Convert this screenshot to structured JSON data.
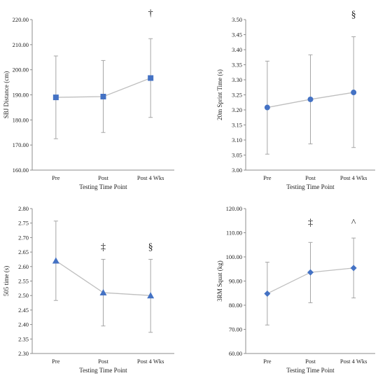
{
  "colors": {
    "marker": "#4472C4",
    "line": "#BFBFBF",
    "errorbar": "#A6A6A6",
    "axis": "#8C8C8C"
  },
  "chart_data": [
    {
      "type": "line",
      "marker": "square",
      "xlabel": "Testing Time Point",
      "ylabel": "SBJ Distance (cm)",
      "categories": [
        "Pre",
        "Post",
        "Post 4 Wks"
      ],
      "series": [
        {
          "values": [
            189.0,
            189.3,
            196.7
          ],
          "error_low": [
            172.5,
            175.0,
            181.0
          ],
          "error_high": [
            205.5,
            203.7,
            212.4
          ]
        }
      ],
      "ylim": [
        160,
        220
      ],
      "ystep": 10,
      "ytick_labels": [
        "160.00",
        "170.00",
        "180.00",
        "190.00",
        "200.00",
        "210.00",
        "220.00"
      ],
      "annotations": [
        {
          "category": 2,
          "text": "†"
        }
      ]
    },
    {
      "type": "line",
      "marker": "circle",
      "xlabel": "Testing Time Point",
      "ylabel": "20m Sprint Time (s)",
      "categories": [
        "Pre",
        "Post",
        "Post 4 Wks"
      ],
      "series": [
        {
          "values": [
            3.208,
            3.235,
            3.258
          ],
          "error_low": [
            3.053,
            3.087,
            3.075
          ],
          "error_high": [
            3.362,
            3.383,
            3.443
          ]
        }
      ],
      "ylim": [
        3.0,
        3.5
      ],
      "ystep": 0.05,
      "ytick_labels": [
        "3.00",
        "3.05",
        "3.10",
        "3.15",
        "3.20",
        "3.25",
        "3.30",
        "3.35",
        "3.40",
        "3.45",
        "3.50"
      ],
      "annotations": [
        {
          "category": 2,
          "text": "§"
        }
      ]
    },
    {
      "type": "line",
      "marker": "triangle",
      "xlabel": "Testing Time Point",
      "ylabel": "505 time (s)",
      "categories": [
        "Pre",
        "Post",
        "Post 4 Wks"
      ],
      "series": [
        {
          "values": [
            2.62,
            2.51,
            2.5
          ],
          "error_low": [
            2.483,
            2.395,
            2.373
          ],
          "error_high": [
            2.757,
            2.625,
            2.625
          ]
        }
      ],
      "ylim": [
        2.3,
        2.8
      ],
      "ystep": 0.05,
      "ytick_labels": [
        "2.30",
        "2.35",
        "2.40",
        "2.45",
        "2.50",
        "2.55",
        "2.60",
        "2.65",
        "2.70",
        "2.75",
        "2.80"
      ],
      "annotations": [
        {
          "category": 1,
          "text": "‡"
        },
        {
          "category": 2,
          "text": "§"
        }
      ]
    },
    {
      "type": "line",
      "marker": "diamond",
      "xlabel": "Testing Time Point",
      "ylabel": "3RM Squat (kg)",
      "categories": [
        "Pre",
        "Post",
        "Post 4 Wks"
      ],
      "series": [
        {
          "values": [
            84.8,
            93.6,
            95.4
          ],
          "error_low": [
            71.8,
            81.0,
            83.0
          ],
          "error_high": [
            97.8,
            106.0,
            107.8
          ]
        }
      ],
      "ylim": [
        60,
        120
      ],
      "ystep": 10,
      "ytick_labels": [
        "60.00",
        "70.00",
        "80.00",
        "90.00",
        "100.00",
        "110.00",
        "120.00"
      ],
      "annotations": [
        {
          "category": 1,
          "text": "‡"
        },
        {
          "category": 2,
          "text": "^"
        }
      ]
    }
  ]
}
